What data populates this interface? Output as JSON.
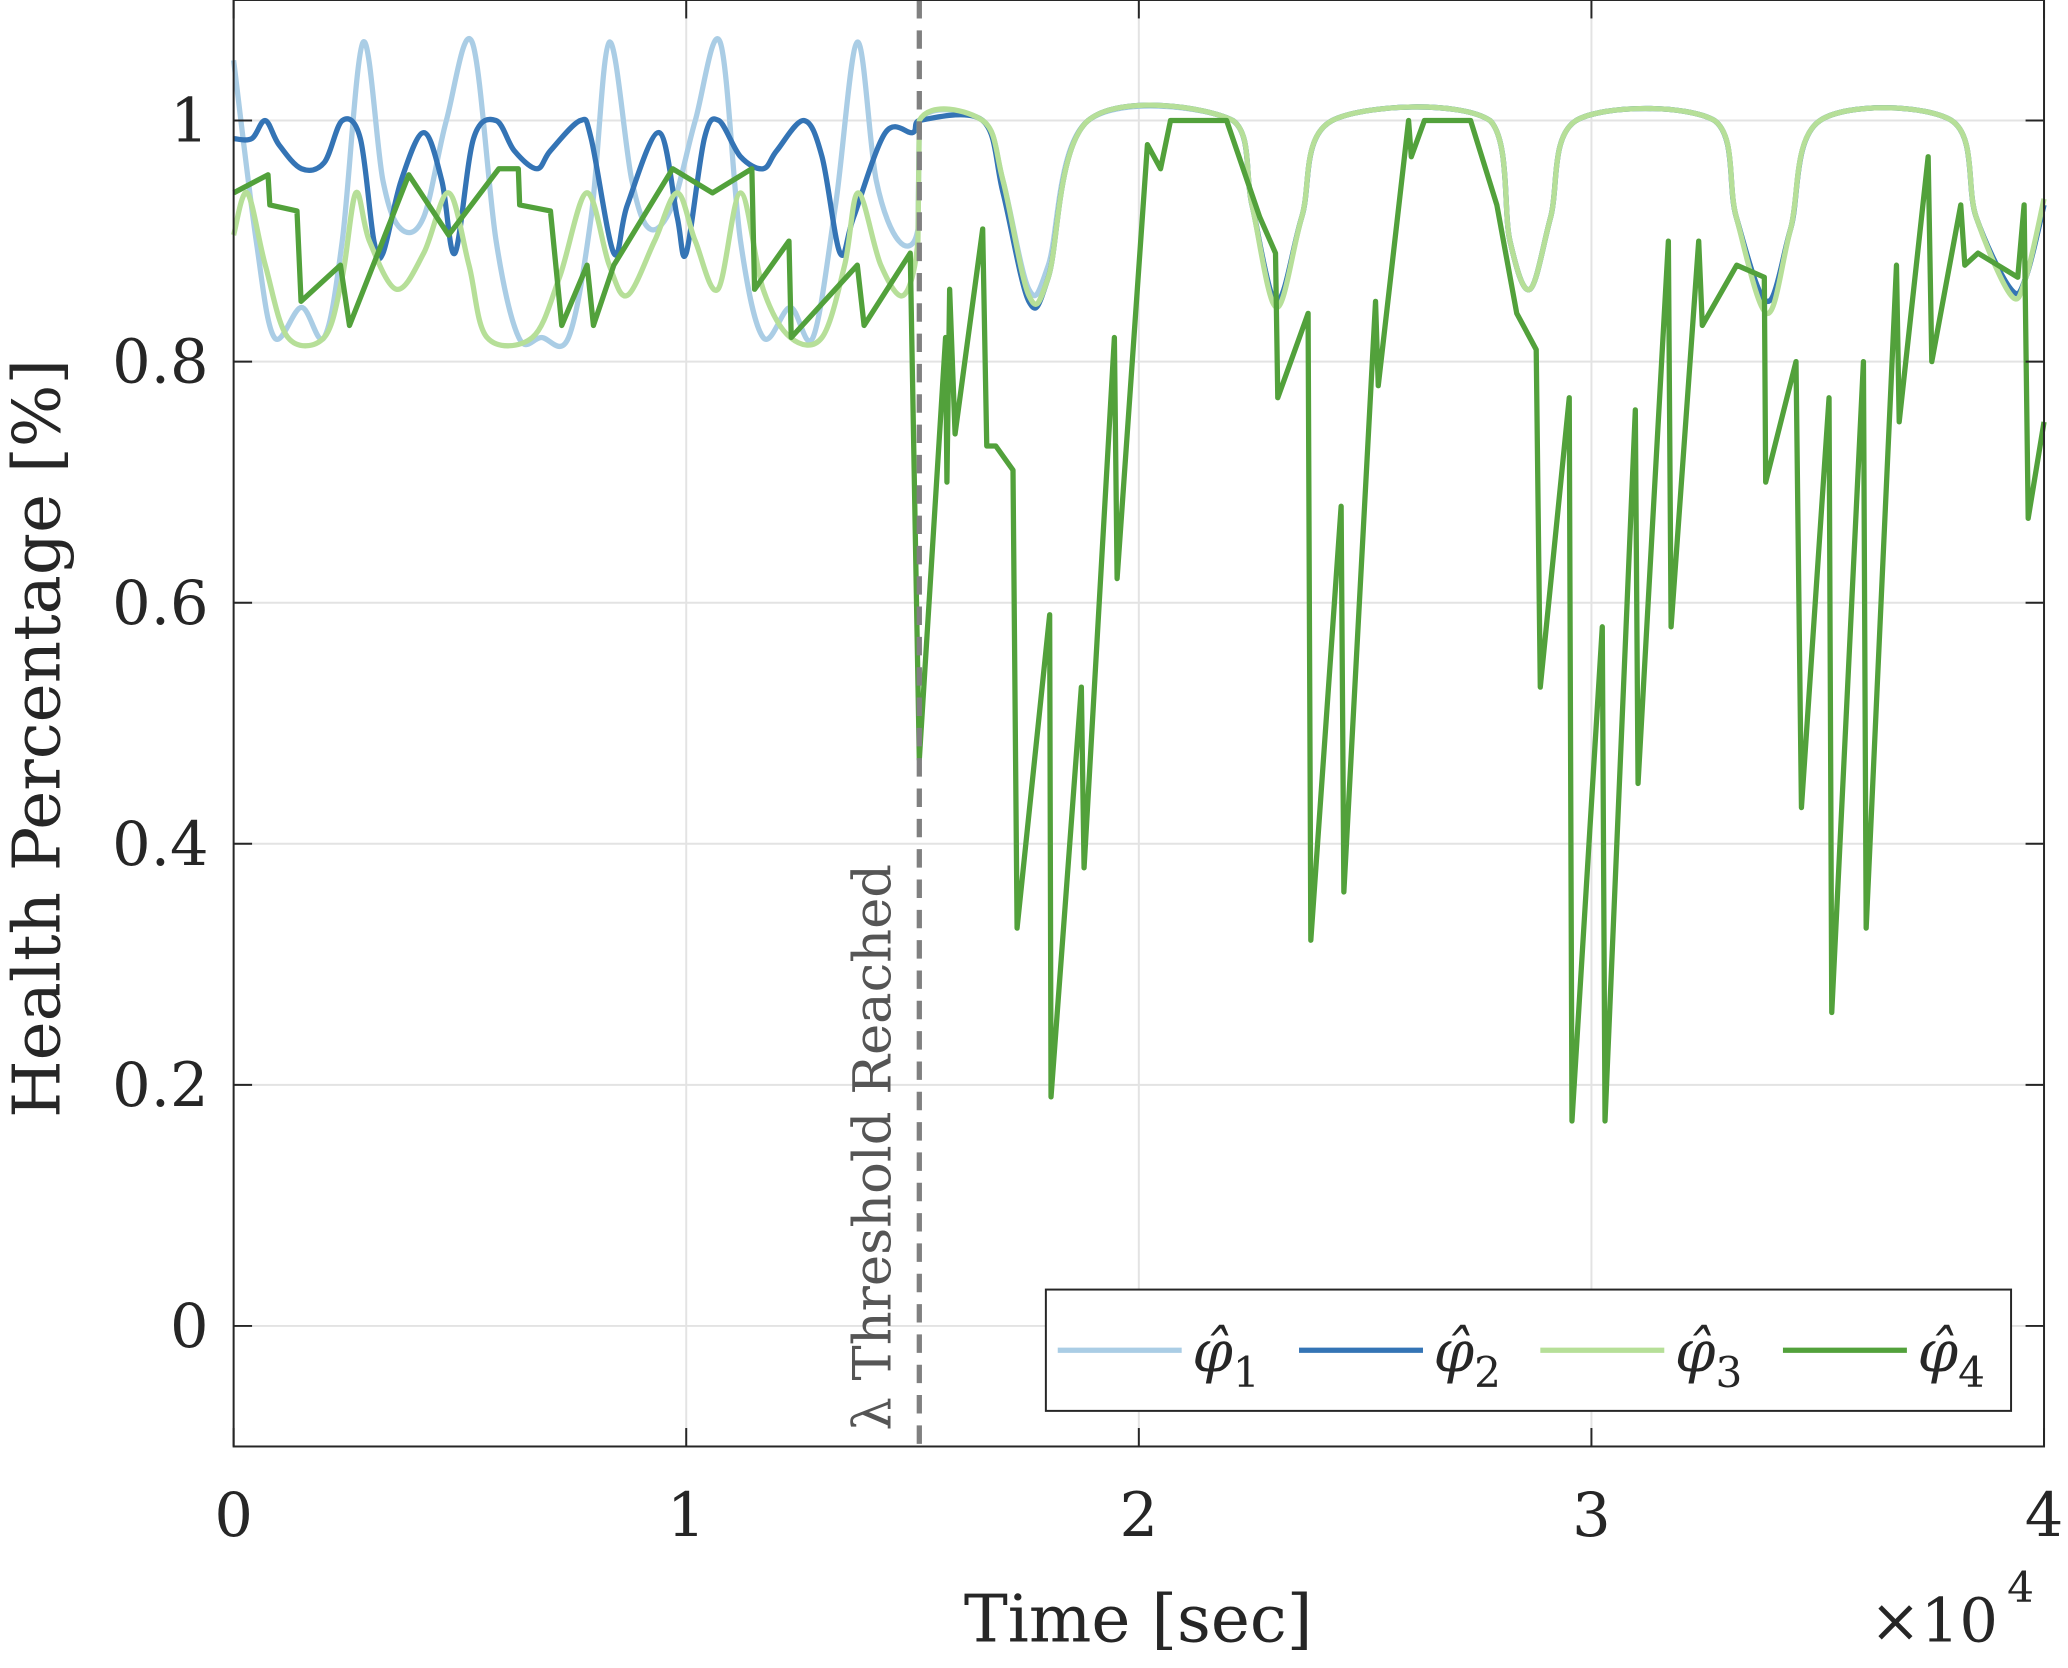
{
  "chart_data": {
    "type": "line",
    "title": "",
    "xlabel": "Time [sec]",
    "ylabel": "Health Percentage [%]",
    "x_exponent_label": "×10",
    "x_exponent_power": "4",
    "x_units_multiplier": 10000,
    "xlim": [
      0,
      4
    ],
    "ylim": [
      -0.1,
      1.1
    ],
    "xticks": [
      "0",
      "1",
      "2",
      "3",
      "4"
    ],
    "xtick_values": [
      0,
      1,
      2,
      3,
      4
    ],
    "yticks": [
      "0",
      "0.2",
      "0.4",
      "0.6",
      "0.8",
      "1"
    ],
    "ytick_values": [
      0,
      0.2,
      0.4,
      0.6,
      0.8,
      1
    ],
    "grid": true,
    "legend_position": "bottom-right",
    "annotation": {
      "text": "λ Threshold Reached",
      "x": 1.515,
      "line_color": "#808080",
      "style": "dashed"
    },
    "series": [
      {
        "name": "φ̂",
        "sub": "1",
        "color": "#aacde5",
        "smooth": true,
        "x": [
          0,
          0.05,
          0.09,
          0.15,
          0.2,
          0.24,
          0.286,
          0.33,
          0.37,
          0.42,
          0.47,
          0.527,
          0.58,
          0.63,
          0.68,
          0.74,
          0.79,
          0.83,
          0.88,
          0.92,
          0.97,
          1.02,
          1.075,
          1.12,
          1.17,
          1.23,
          1.28,
          1.33,
          1.378,
          1.42,
          1.47,
          1.512,
          1.515,
          1.655,
          1.7,
          1.757,
          1.8,
          1.888,
          2.208,
          2.25,
          2.304,
          2.36,
          2.427,
          2.776,
          2.82,
          2.864,
          2.91,
          2.966,
          3.272,
          3.32,
          3.388,
          3.44,
          3.505,
          3.796,
          3.85,
          3.927,
          3.96,
          4.0
        ],
        "y": [
          1.05,
          0.9,
          0.82,
          0.845,
          0.82,
          0.9,
          1.065,
          0.95,
          0.91,
          0.92,
          1.0,
          1.065,
          0.9,
          0.82,
          0.82,
          0.82,
          0.92,
          1.065,
          0.95,
          0.91,
          0.93,
          1.0,
          1.065,
          0.9,
          0.82,
          0.845,
          0.82,
          0.93,
          1.065,
          0.95,
          0.9,
          0.91,
          1.0,
          1.0,
          0.95,
          0.86,
          0.88,
          1.0,
          1.0,
          0.93,
          0.85,
          0.92,
          1.0,
          1.0,
          0.9,
          0.86,
          0.92,
          1.0,
          1.0,
          0.92,
          0.85,
          0.91,
          1.0,
          1.0,
          0.92,
          0.86,
          0.87,
          0.93
        ]
      },
      {
        "name": "φ̂",
        "sub": "2",
        "color": "#3474b5",
        "smooth": true,
        "x": [
          0,
          0.04,
          0.07,
          0.1,
          0.15,
          0.2,
          0.24,
          0.28,
          0.31,
          0.33,
          0.37,
          0.42,
          0.46,
          0.489,
          0.53,
          0.58,
          0.62,
          0.67,
          0.7,
          0.766,
          0.79,
          0.84,
          0.87,
          0.94,
          0.98,
          1.0,
          1.04,
          1.072,
          1.12,
          1.17,
          1.2,
          1.26,
          1.3,
          1.34,
          1.37,
          1.44,
          1.5,
          1.515,
          1.655,
          1.7,
          1.757,
          1.8,
          1.888,
          2.208,
          2.25,
          2.304,
          2.36,
          2.427,
          2.776,
          2.82,
          2.864,
          2.91,
          2.966,
          3.272,
          3.32,
          3.388,
          3.44,
          3.505,
          3.796,
          3.85,
          3.927,
          3.96,
          4.0
        ],
        "y": [
          0.985,
          0.985,
          1.0,
          0.98,
          0.96,
          0.965,
          1.0,
          0.985,
          0.9,
          0.89,
          0.95,
          0.99,
          0.95,
          0.89,
          0.985,
          1.0,
          0.975,
          0.96,
          0.975,
          1.0,
          0.985,
          0.89,
          0.93,
          0.99,
          0.92,
          0.89,
          0.985,
          1.0,
          0.97,
          0.96,
          0.975,
          1.0,
          0.97,
          0.89,
          0.92,
          0.99,
          0.99,
          1.0,
          1.0,
          0.94,
          0.85,
          0.87,
          1.0,
          1.0,
          0.93,
          0.85,
          0.92,
          1.0,
          1.0,
          0.9,
          0.86,
          0.92,
          1.0,
          1.0,
          0.92,
          0.85,
          0.91,
          1.0,
          1.0,
          0.92,
          0.86,
          0.87,
          0.93
        ]
      },
      {
        "name": "φ̂",
        "sub": "3",
        "color": "#b6df98",
        "smooth": true,
        "x": [
          0,
          0.03,
          0.07,
          0.12,
          0.2,
          0.24,
          0.27,
          0.3,
          0.36,
          0.42,
          0.475,
          0.52,
          0.56,
          0.66,
          0.72,
          0.78,
          0.83,
          0.87,
          0.93,
          0.98,
          1.02,
          1.07,
          1.12,
          1.17,
          1.23,
          1.3,
          1.35,
          1.38,
          1.43,
          1.48,
          1.512,
          1.515,
          1.655,
          1.7,
          1.757,
          1.8,
          1.888,
          2.208,
          2.25,
          2.304,
          2.36,
          2.427,
          2.776,
          2.82,
          2.864,
          2.91,
          2.966,
          3.272,
          3.32,
          3.388,
          3.44,
          3.505,
          3.796,
          3.85,
          3.927,
          3.96,
          4.0
        ],
        "y": [
          0.905,
          0.94,
          0.88,
          0.82,
          0.82,
          0.87,
          0.94,
          0.9,
          0.86,
          0.89,
          0.94,
          0.88,
          0.82,
          0.82,
          0.87,
          0.94,
          0.88,
          0.855,
          0.9,
          0.94,
          0.9,
          0.86,
          0.94,
          0.86,
          0.82,
          0.82,
          0.88,
          0.94,
          0.88,
          0.855,
          0.9,
          1.0,
          1.0,
          0.95,
          0.855,
          0.87,
          1.0,
          1.0,
          0.93,
          0.845,
          0.92,
          1.0,
          1.0,
          0.9,
          0.86,
          0.92,
          1.0,
          1.0,
          0.92,
          0.84,
          0.91,
          1.0,
          1.0,
          0.92,
          0.855,
          0.87,
          0.935
        ]
      },
      {
        "name": "φ̂",
        "sub": "4",
        "color": "#52a13b",
        "smooth": false,
        "x": [
          0,
          0.076,
          0.08,
          0.14,
          0.149,
          0.236,
          0.256,
          0.387,
          0.475,
          0.586,
          0.629,
          0.632,
          0.7,
          0.725,
          0.781,
          0.795,
          0.84,
          0.97,
          1.058,
          1.145,
          1.151,
          1.227,
          1.232,
          1.378,
          1.393,
          1.495,
          1.515,
          1.573,
          1.576,
          1.582,
          1.594,
          1.655,
          1.664,
          1.684,
          1.722,
          1.731,
          1.803,
          1.806,
          1.873,
          1.879,
          1.946,
          1.952,
          2.019,
          2.048,
          2.07,
          2.194,
          2.267,
          2.302,
          2.307,
          2.374,
          2.38,
          2.447,
          2.453,
          2.523,
          2.529,
          2.596,
          2.602,
          2.631,
          2.733,
          2.791,
          2.835,
          2.878,
          2.887,
          2.951,
          2.957,
          3.024,
          3.03,
          3.097,
          3.103,
          3.17,
          3.176,
          3.237,
          3.245,
          3.321,
          3.382,
          3.385,
          3.452,
          3.464,
          3.525,
          3.531,
          3.601,
          3.607,
          3.674,
          3.68,
          3.744,
          3.752,
          3.816,
          3.825,
          3.854,
          3.942,
          3.956,
          3.965,
          4.0
        ],
        "y": [
          0.94,
          0.955,
          0.93,
          0.925,
          0.85,
          0.88,
          0.83,
          0.955,
          0.905,
          0.96,
          0.96,
          0.93,
          0.925,
          0.83,
          0.88,
          0.83,
          0.88,
          0.96,
          0.94,
          0.96,
          0.86,
          0.9,
          0.82,
          0.88,
          0.83,
          0.89,
          0.47,
          0.82,
          0.7,
          0.86,
          0.74,
          0.91,
          0.73,
          0.73,
          0.71,
          0.33,
          0.59,
          0.19,
          0.53,
          0.38,
          0.82,
          0.62,
          0.98,
          0.96,
          1.0,
          1.0,
          0.92,
          0.89,
          0.77,
          0.84,
          0.32,
          0.68,
          0.36,
          0.85,
          0.78,
          1.0,
          0.97,
          1.0,
          1.0,
          0.93,
          0.84,
          0.81,
          0.53,
          0.77,
          0.17,
          0.58,
          0.17,
          0.76,
          0.45,
          0.9,
          0.58,
          0.9,
          0.83,
          0.88,
          0.87,
          0.7,
          0.8,
          0.43,
          0.77,
          0.26,
          0.8,
          0.33,
          0.88,
          0.75,
          0.97,
          0.8,
          0.93,
          0.88,
          0.89,
          0.87,
          0.93,
          0.67,
          0.75
        ]
      }
    ]
  }
}
